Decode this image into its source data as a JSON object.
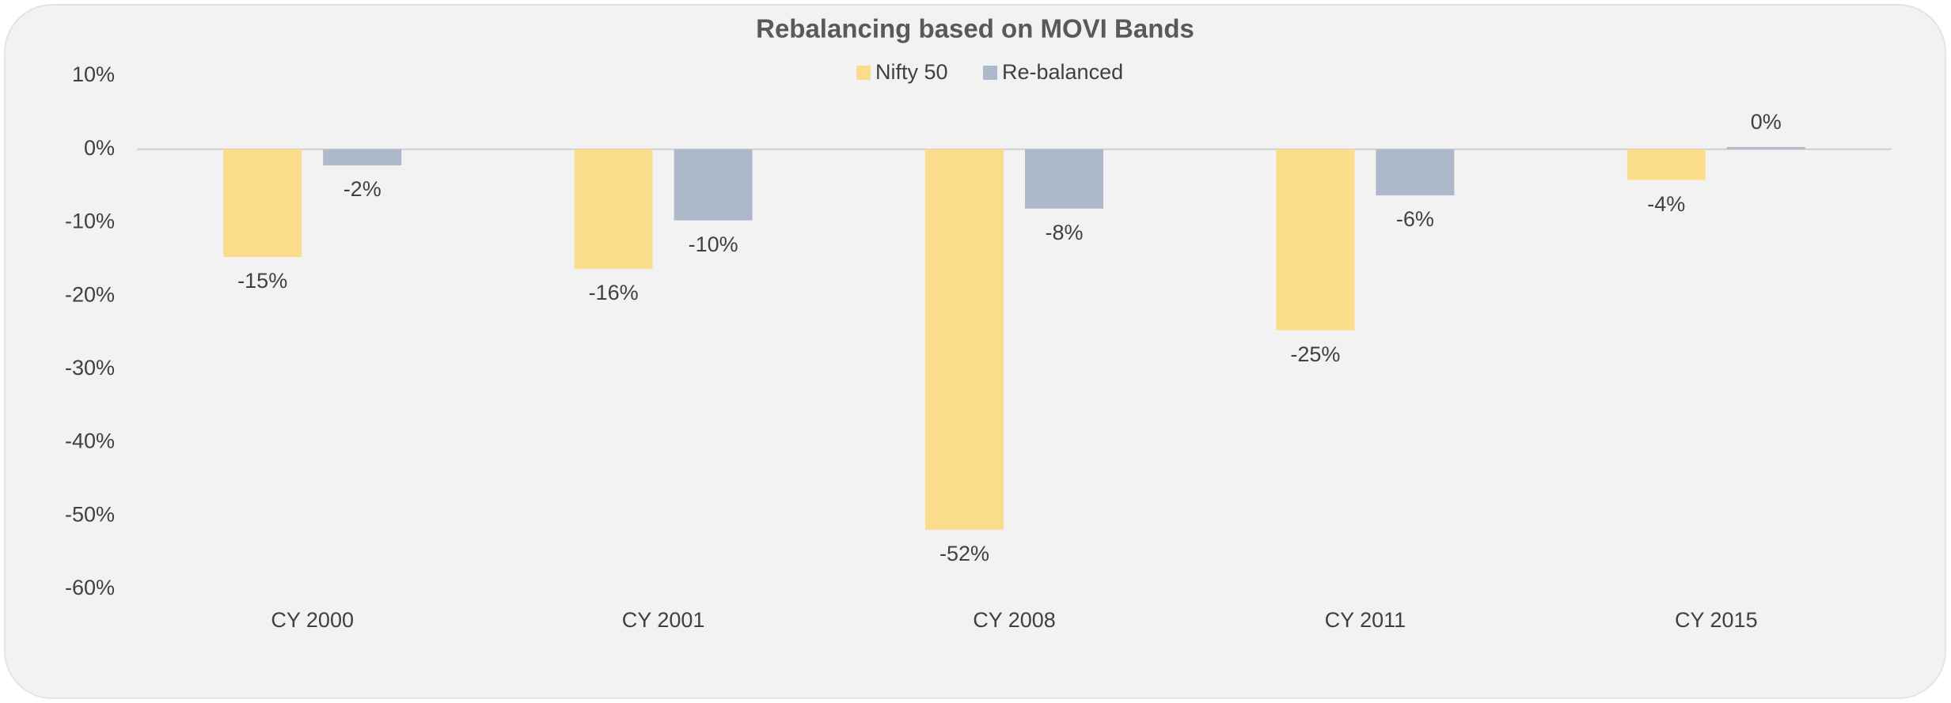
{
  "chart_data": {
    "type": "bar",
    "title": "Rebalancing based on MOVI Bands",
    "categories": [
      "CY 2000",
      "CY 2001",
      "CY 2008",
      "CY 2011",
      "CY 2015"
    ],
    "series": [
      {
        "name": "Nifty 50",
        "color": "#fbdc8a",
        "values": [
          -14.7,
          -16.3,
          -51.9,
          -24.7,
          -4.2
        ],
        "value_labels": [
          "-15%",
          "-16%",
          "-52%",
          "-25%",
          "-4%"
        ]
      },
      {
        "name": "Re-balanced",
        "color": "#adb9ca",
        "values": [
          -2.2,
          -9.7,
          -8.1,
          -6.3,
          0.3
        ],
        "value_labels": [
          "-2%",
          "-10%",
          "-8%",
          "-6%",
          "0%"
        ]
      }
    ],
    "ylim": [
      -60,
      10
    ],
    "yticks": [
      {
        "value": 10,
        "label": "10%"
      },
      {
        "value": 0,
        "label": "0%"
      },
      {
        "value": -10,
        "label": "-10%"
      },
      {
        "value": -20,
        "label": "-20%"
      },
      {
        "value": -30,
        "label": "-30%"
      },
      {
        "value": -40,
        "label": "-40%"
      },
      {
        "value": -50,
        "label": "-50%"
      },
      {
        "value": -60,
        "label": "-60%"
      }
    ],
    "legend": "top"
  }
}
